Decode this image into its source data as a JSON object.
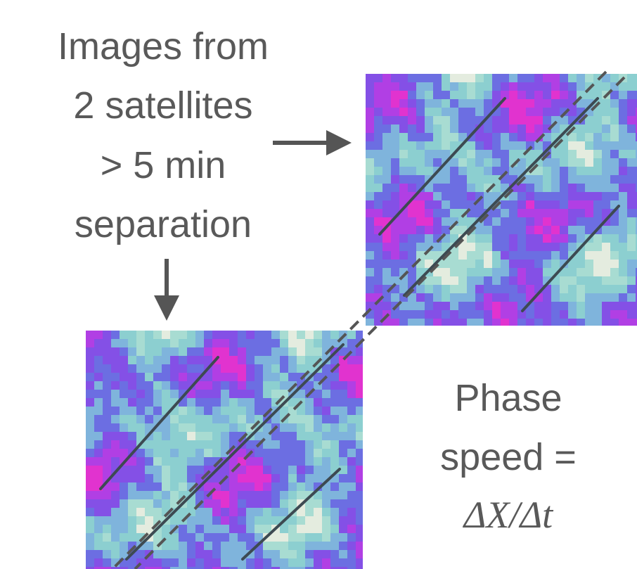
{
  "caption": {
    "lines": [
      "Images from",
      "2 satellites",
      "> 5 min",
      "separation"
    ]
  },
  "result": {
    "lines": [
      "Phase",
      "speed =",
      "ΔX/Δt"
    ]
  }
}
